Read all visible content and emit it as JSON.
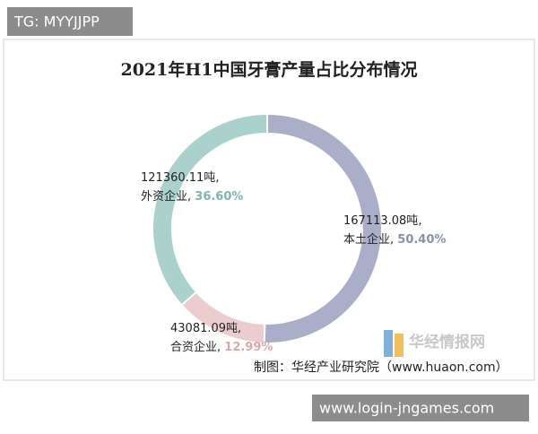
{
  "overlay_top": "TG: MYYJJPP",
  "overlay_bottom": "www.login-jngames.com",
  "chart_data": {
    "type": "donut",
    "title": "2021年H1中国牙膏产量占比分布情况",
    "categories": [
      "本土企业",
      "合资企业",
      "外资企业"
    ],
    "values": [
      50.4,
      12.99,
      36.6
    ],
    "value_labels": [
      "50.40%",
      "12.99%",
      "36.60%"
    ],
    "amount_labels": [
      "167113.08吨",
      "43081.09吨",
      "121360.11吨"
    ],
    "label_separator": ", ",
    "colors": [
      "#abaec9",
      "#ebcdd0",
      "#abd1cd"
    ],
    "label_colors": [
      "#8b90b3",
      "#dba9ad",
      "#7fb5ae"
    ],
    "watermark": "华经情报网",
    "source": "制图：华经产业研究院（www.huaon.com）"
  }
}
